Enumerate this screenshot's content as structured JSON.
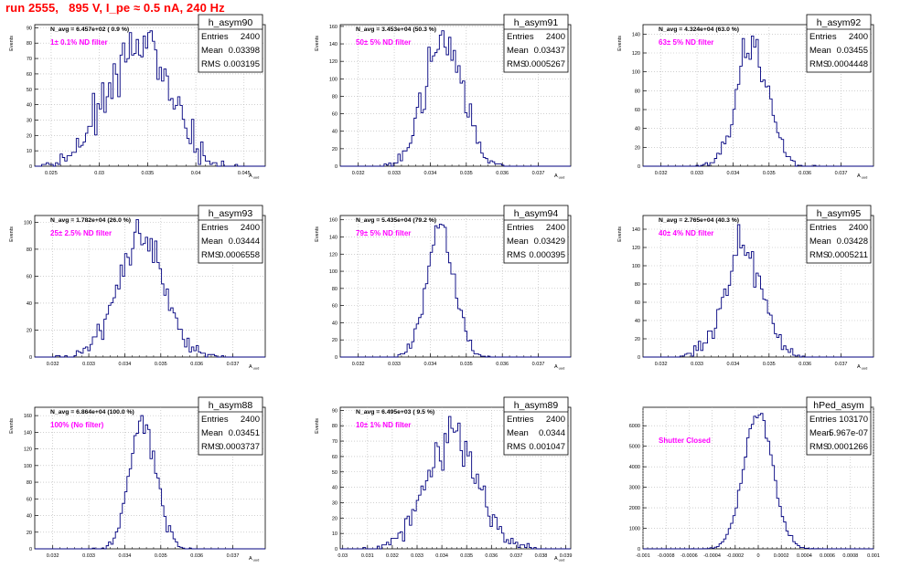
{
  "run_title": "run 2555,   895 V, I_pe ≈ 0.5 nA, 240 Hz",
  "colors": {
    "title": "#ff0000",
    "filter_label": "#ff00ff",
    "histogram": "#00007f",
    "grid": "#b4b4b4"
  },
  "chart_data": [
    {
      "type": "histogram",
      "stats_title": "h_asym90",
      "stats": [
        [
          "Entries",
          "2400"
        ],
        [
          "Mean",
          "0.03398"
        ],
        [
          "RMS",
          "0.003195"
        ]
      ],
      "navg": "N_avg = 6.457e+02 ( 0.9 %)",
      "filter": "1± 0.1% ND filter",
      "ylabel": "Events",
      "xlabel": "A_uud",
      "xlim": [
        0.0233,
        0.0472
      ],
      "ylim": [
        0,
        92
      ],
      "yticks": [
        0,
        10,
        20,
        30,
        40,
        50,
        60,
        70,
        80,
        90
      ],
      "yticklabels": [
        "0",
        "10",
        "20",
        "30",
        "40",
        "50",
        "60",
        "70",
        "80",
        "90"
      ],
      "xticks": [
        0.025,
        0.03,
        0.035,
        0.04,
        0.045
      ],
      "xticklabels": [
        "0.025",
        "0.03",
        "0.035",
        "0.04",
        "0.045"
      ],
      "mean": 0.03398,
      "rms": 0.003195,
      "peak": 88,
      "entries": 2400
    },
    {
      "type": "histogram",
      "stats_title": "h_asym91",
      "stats": [
        [
          "Entries",
          "2400"
        ],
        [
          "Mean",
          "0.03437"
        ],
        [
          "RMS",
          "0.0005267"
        ]
      ],
      "navg": "N_avg = 3.453e+04 (50.3 %)",
      "filter": "50± 5% ND filter",
      "ylabel": "Events",
      "xlabel": "A_uud",
      "xlim": [
        0.0315,
        0.0379
      ],
      "ylim": [
        0,
        162
      ],
      "yticks": [
        0,
        20,
        40,
        60,
        80,
        100,
        120,
        140,
        160
      ],
      "yticklabels": [
        "0",
        "20",
        "40",
        "60",
        "80",
        "100",
        "120",
        "140",
        "160"
      ],
      "xticks": [
        0.032,
        0.033,
        0.034,
        0.035,
        0.036,
        0.037
      ],
      "xticklabels": [
        "0.032",
        "0.033",
        "0.034",
        "0.035",
        "0.036",
        "0.037"
      ],
      "mean": 0.03437,
      "rms": 0.0005267,
      "peak": 155,
      "entries": 2400
    },
    {
      "type": "histogram",
      "stats_title": "h_asym92",
      "stats": [
        [
          "Entries",
          "2400"
        ],
        [
          "Mean",
          "0.03455"
        ],
        [
          "RMS",
          "0.0004448"
        ]
      ],
      "navg": "N_avg = 4.324e+04 (63.0 %)",
      "filter": "63± 5% ND filter",
      "ylabel": "Events",
      "xlabel": "A_uud",
      "xlim": [
        0.0315,
        0.0379
      ],
      "ylim": [
        0,
        150
      ],
      "yticks": [
        0,
        20,
        40,
        60,
        80,
        100,
        120,
        140
      ],
      "yticklabels": [
        "0",
        "20",
        "40",
        "60",
        "80",
        "100",
        "120",
        "140"
      ],
      "xticks": [
        0.032,
        0.033,
        0.034,
        0.035,
        0.036,
        0.037
      ],
      "xticklabels": [
        "0.032",
        "0.033",
        "0.034",
        "0.035",
        "0.036",
        "0.037"
      ],
      "mean": 0.03455,
      "rms": 0.0004448,
      "peak": 138,
      "entries": 2400
    },
    {
      "type": "histogram",
      "stats_title": "h_asym93",
      "stats": [
        [
          "Entries",
          "2400"
        ],
        [
          "Mean",
          "0.03444"
        ],
        [
          "RMS",
          "0.0006558"
        ]
      ],
      "navg": "N_avg = 1.782e+04 (26.0 %)",
      "filter": "25± 2.5% ND filter",
      "ylabel": "Events",
      "xlabel": "A_uud",
      "xlim": [
        0.0315,
        0.0379
      ],
      "ylim": [
        0,
        105
      ],
      "yticks": [
        0,
        20,
        40,
        60,
        80,
        100
      ],
      "yticklabels": [
        "0",
        "20",
        "40",
        "60",
        "80",
        "100"
      ],
      "xticks": [
        0.032,
        0.033,
        0.034,
        0.035,
        0.036,
        0.037
      ],
      "xticklabels": [
        "0.032",
        "0.033",
        "0.034",
        "0.035",
        "0.036",
        "0.037"
      ],
      "mean": 0.03444,
      "rms": 0.0006558,
      "peak": 102,
      "entries": 2400
    },
    {
      "type": "histogram",
      "stats_title": "h_asym94",
      "stats": [
        [
          "Entries",
          "2400"
        ],
        [
          "Mean",
          "0.03429"
        ],
        [
          "RMS",
          "0.000395"
        ]
      ],
      "navg": "N_avg = 5.435e+04 (79.2 %)",
      "filter": "79± 5% ND filter",
      "ylabel": "Events",
      "xlabel": "A_uud",
      "xlim": [
        0.0315,
        0.0379
      ],
      "ylim": [
        0,
        165
      ],
      "yticks": [
        0,
        20,
        40,
        60,
        80,
        100,
        120,
        140,
        160
      ],
      "yticklabels": [
        "0",
        "20",
        "40",
        "60",
        "80",
        "100",
        "120",
        "140",
        "160"
      ],
      "xticks": [
        0.032,
        0.033,
        0.034,
        0.035,
        0.036,
        0.037
      ],
      "xticklabels": [
        "0.032",
        "0.033",
        "0.034",
        "0.035",
        "0.036",
        "0.037"
      ],
      "mean": 0.03429,
      "rms": 0.000395,
      "peak": 155,
      "entries": 2400
    },
    {
      "type": "histogram",
      "stats_title": "h_asym95",
      "stats": [
        [
          "Entries",
          "2400"
        ],
        [
          "Mean",
          "0.03428"
        ],
        [
          "RMS",
          "0.0005211"
        ]
      ],
      "navg": "N_avg = 2.765e+04 (40.3 %)",
      "filter": "40± 4% ND filter",
      "ylabel": "Events",
      "xlabel": "A_uud",
      "xlim": [
        0.0315,
        0.0379
      ],
      "ylim": [
        0,
        155
      ],
      "yticks": [
        0,
        20,
        40,
        60,
        80,
        100,
        120,
        140
      ],
      "yticklabels": [
        "0",
        "20",
        "40",
        "60",
        "80",
        "100",
        "120",
        "140"
      ],
      "xticks": [
        0.032,
        0.033,
        0.034,
        0.035,
        0.036,
        0.037
      ],
      "xticklabels": [
        "0.032",
        "0.033",
        "0.034",
        "0.035",
        "0.036",
        "0.037"
      ],
      "mean": 0.03428,
      "rms": 0.0005211,
      "peak": 145,
      "entries": 2400
    },
    {
      "type": "histogram",
      "stats_title": "h_asym88",
      "stats": [
        [
          "Entries",
          "2400"
        ],
        [
          "Mean",
          "0.03451"
        ],
        [
          "RMS",
          "0.0003737"
        ]
      ],
      "navg": "N_avg = 6.864e+04 (100.0 %)",
      "filter": "100% (No filter)",
      "ylabel": "Events",
      "xlabel": "A_uud",
      "xlim": [
        0.0315,
        0.0379
      ],
      "ylim": [
        0,
        170
      ],
      "yticks": [
        0,
        20,
        40,
        60,
        80,
        100,
        120,
        140,
        160
      ],
      "yticklabels": [
        "0",
        "20",
        "40",
        "60",
        "80",
        "100",
        "120",
        "140",
        "160"
      ],
      "xticks": [
        0.032,
        0.033,
        0.034,
        0.035,
        0.036,
        0.037
      ],
      "xticklabels": [
        "0.032",
        "0.033",
        "0.034",
        "0.035",
        "0.036",
        "0.037"
      ],
      "mean": 0.03451,
      "rms": 0.0003737,
      "peak": 160,
      "entries": 2400
    },
    {
      "type": "histogram",
      "stats_title": "h_asym89",
      "stats": [
        [
          "Entries",
          "2400"
        ],
        [
          "Mean",
          "0.0344"
        ],
        [
          "RMS",
          "0.001047"
        ]
      ],
      "navg": "N_avg = 6.495e+03 ( 9.5 %)",
      "filter": "10± 1% ND filter",
      "ylabel": "Events",
      "xlabel": "A_uud",
      "xlim": [
        0.0299,
        0.0392
      ],
      "ylim": [
        0,
        92
      ],
      "yticks": [
        0,
        10,
        20,
        30,
        40,
        50,
        60,
        70,
        80,
        90
      ],
      "yticklabels": [
        "0",
        "10",
        "20",
        "30",
        "40",
        "50",
        "60",
        "70",
        "80",
        "90"
      ],
      "xticks": [
        0.03,
        0.031,
        0.032,
        0.033,
        0.034,
        0.035,
        0.036,
        0.037,
        0.038,
        0.039
      ],
      "xticklabels": [
        "0.03",
        "0.031",
        "0.032",
        "0.033",
        "0.034",
        "0.035",
        "0.036",
        "0.037",
        "0.038",
        "0.039"
      ],
      "mean": 0.0344,
      "rms": 0.001047,
      "peak": 86,
      "entries": 2400
    },
    {
      "type": "histogram",
      "stats_title": "hPed_asym",
      "stats": [
        [
          "Entries",
          "103170"
        ],
        [
          "Mean",
          "5.967e-07"
        ],
        [
          "RMS",
          "0.0001266"
        ]
      ],
      "navg": "",
      "filter": "Shutter Closed",
      "ylabel": "",
      "xlabel": "",
      "xlim": [
        -0.001,
        0.001
      ],
      "ylim": [
        0,
        6900
      ],
      "yticks": [
        0,
        1000,
        2000,
        3000,
        4000,
        5000,
        6000
      ],
      "yticklabels": [
        "0",
        "1000",
        "2000",
        "3000",
        "4000",
        "5000",
        "6000"
      ],
      "xticks": [
        -0.001,
        -0.0008,
        -0.0006,
        -0.0004,
        -0.0002,
        0,
        0.0002,
        0.0004,
        0.0006,
        0.0008,
        0.001
      ],
      "xticklabels": [
        "-0.001",
        "-0.0008",
        "-0.0006",
        "-0.0004",
        "-0.0002",
        "0",
        "0.0002",
        "0.0004",
        "0.0006",
        "0.0008",
        "0.001"
      ],
      "mean": 5.967e-07,
      "rms": 0.0001266,
      "peak": 6600,
      "entries": 103170
    }
  ]
}
